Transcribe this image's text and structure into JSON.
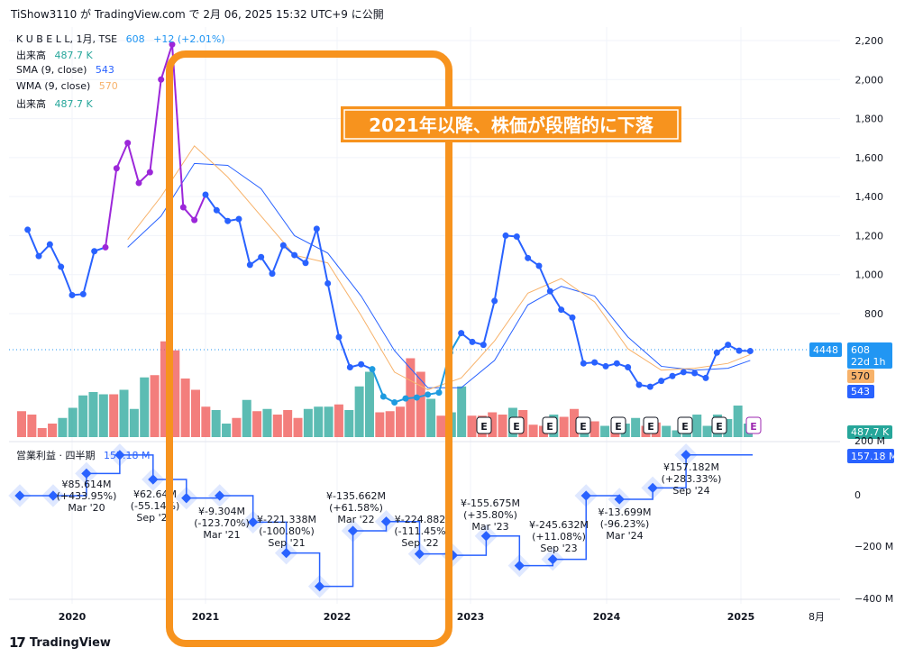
{
  "header": {
    "publisher": "TiShow3110 が TradingView.com で 2月 06, 2025 15:32 UTC+9 に公開"
  },
  "legend": {
    "symbol": "K U B E L L, 1月, TSE",
    "price": "608",
    "change": "+12 (+2.01%)",
    "volume_label": "出来高",
    "volume_value": "487.7 K",
    "sma_label": "SMA (9, close)",
    "sma_value": "543",
    "wma_label": "WMA (9, close)",
    "wma_value": "570",
    "volume2_label": "出来高",
    "volume2_value": "487.7 K"
  },
  "annotation": {
    "text": "2021年以降、株価が段階的に下落"
  },
  "lower_panel_label": {
    "title": "営業利益 · 四半期",
    "value": "157.18 M"
  },
  "price_axis": {
    "ticks": [
      "2,200",
      "2,000",
      "1,800",
      "1,600",
      "1,400",
      "1,200",
      "1,000",
      "800"
    ],
    "badge_symbol": "4448",
    "badge_price": "608",
    "badge_countdown": "22d 1h",
    "badge_wma": "570",
    "badge_sma": "543",
    "badge_volume": "487.7 K"
  },
  "lower_axis": {
    "ticks": [
      "200 M",
      "0",
      "−200 M",
      "−400 M"
    ],
    "badge": "157.18 M"
  },
  "time_axis": [
    "2020",
    "2021",
    "2022",
    "2023",
    "2024",
    "2025",
    "8月"
  ],
  "colors": {
    "accent_orange": "#f59b1a",
    "up_volume": "#26a69a",
    "down_volume": "#ef5350",
    "price_purple": "#9c27d9",
    "price_blue": "#2962ff",
    "price_cyan": "#1e9be0",
    "sma": "#2962ff",
    "wma": "#f7b26a",
    "earnings": "#9c27b0"
  },
  "chart_data": [
    {
      "type": "line",
      "title": "K U B E L L, 1月, TSE",
      "series": [
        {
          "name": "K U B E L L",
          "x": [
            "2019-09",
            "2019-10",
            "2019-11",
            "2019-12",
            "2020-01",
            "2020-02",
            "2020-03",
            "2020-04",
            "2020-05",
            "2020-06",
            "2020-07",
            "2020-08",
            "2020-09",
            "2020-10",
            "2020-11",
            "2020-12",
            "2021-01",
            "2021-02",
            "2021-03",
            "2021-04",
            "2021-05",
            "2021-06",
            "2021-07",
            "2021-08",
            "2021-09",
            "2021-10",
            "2021-11",
            "2021-12",
            "2022-01",
            "2022-02",
            "2022-03",
            "2022-04",
            "2022-05",
            "2022-06",
            "2022-07",
            "2022-08",
            "2022-09",
            "2022-10",
            "2022-11",
            "2022-12",
            "2023-01",
            "2023-02",
            "2023-03",
            "2023-04",
            "2023-05",
            "2023-06",
            "2023-07",
            "2023-08",
            "2023-09",
            "2023-10",
            "2023-11",
            "2023-12",
            "2024-01",
            "2024-02",
            "2024-03",
            "2024-04",
            "2024-05",
            "2024-06",
            "2024-07",
            "2024-08",
            "2024-09",
            "2024-10",
            "2024-11",
            "2024-12",
            "2025-01",
            "2025-02"
          ],
          "values": [
            1230,
            1095,
            1155,
            1040,
            895,
            900,
            1120,
            1140,
            1545,
            1675,
            1470,
            1525,
            2000,
            2180,
            1345,
            1280,
            1410,
            1330,
            1275,
            1285,
            1050,
            1090,
            1005,
            1150,
            1100,
            1060,
            1235,
            955,
            680,
            525,
            540,
            515,
            375,
            345,
            365,
            370,
            385,
            395,
            600,
            700,
            655,
            640,
            865,
            1200,
            1195,
            1085,
            1045,
            915,
            820,
            780,
            545,
            550,
            530,
            545,
            525,
            435,
            425,
            455,
            480,
            500,
            495,
            470,
            600,
            640,
            610,
            608
          ]
        },
        {
          "name": "SMA (9, close)",
          "x": [
            "2020-06",
            "2020-09",
            "2020-12",
            "2021-03",
            "2021-06",
            "2021-09",
            "2021-12",
            "2022-03",
            "2022-06",
            "2022-09",
            "2022-12",
            "2023-03",
            "2023-06",
            "2023-09",
            "2023-12",
            "2024-03",
            "2024-06",
            "2024-09",
            "2024-12",
            "2025-02"
          ],
          "values": [
            1140,
            1300,
            1570,
            1560,
            1440,
            1200,
            1110,
            890,
            610,
            420,
            420,
            560,
            845,
            940,
            890,
            680,
            530,
            510,
            520,
            560
          ]
        },
        {
          "name": "WMA (9, close)",
          "x": [
            "2020-06",
            "2020-09",
            "2020-12",
            "2021-03",
            "2021-06",
            "2021-09",
            "2021-12",
            "2022-03",
            "2022-06",
            "2022-09",
            "2022-12",
            "2023-03",
            "2023-06",
            "2023-09",
            "2023-12",
            "2024-03",
            "2024-06",
            "2024-09",
            "2024-12",
            "2025-02"
          ],
          "values": [
            1180,
            1400,
            1660,
            1500,
            1300,
            1100,
            1060,
            790,
            500,
            410,
            470,
            660,
            905,
            980,
            860,
            620,
            510,
            520,
            545,
            590
          ]
        }
      ],
      "ylim": [
        400,
        2300
      ]
    },
    {
      "type": "bar",
      "title": "出来高",
      "values_relative": [
        0.23,
        0.2,
        0.08,
        0.12,
        0.17,
        0.26,
        0.37,
        0.4,
        0.38,
        0.38,
        0.42,
        0.25,
        0.53,
        0.55,
        0.85,
        0.77,
        0.52,
        0.42,
        0.27,
        0.24,
        0.12,
        0.17,
        0.33,
        0.23,
        0.25,
        0.2,
        0.24,
        0.17,
        0.25,
        0.27,
        0.27,
        0.29,
        0.24,
        0.45,
        0.58,
        0.22,
        0.23,
        0.27,
        0.7,
        0.58,
        0.34,
        0.19,
        0.22,
        0.45,
        0.19,
        0.19,
        0.22,
        0.2,
        0.26,
        0.24,
        0.11,
        0.1,
        0.2,
        0.18,
        0.25,
        0.16,
        0.14,
        0.1,
        0.1,
        0.12,
        0.17,
        0.1,
        0.13,
        0.1,
        0.06,
        0.08,
        0.2,
        0.1,
        0.2,
        0.16,
        0.28,
        0.12
      ],
      "up": [
        0,
        0,
        0,
        0,
        1,
        1,
        1,
        1,
        1,
        0,
        1,
        1,
        1,
        0,
        0,
        0,
        0,
        0,
        0,
        1,
        1,
        0,
        1,
        0,
        1,
        0,
        0,
        0,
        1,
        1,
        1,
        0,
        1,
        1,
        1,
        0,
        0,
        0,
        0,
        0,
        1,
        0,
        1,
        1,
        0,
        0,
        0,
        0,
        1,
        0,
        0,
        0,
        1,
        0,
        0,
        1,
        0,
        1,
        0,
        1,
        1,
        0,
        0,
        1,
        1,
        1,
        1,
        1,
        1,
        1,
        1,
        1
      ]
    },
    {
      "type": "line",
      "title": "営業利益 · 四半期",
      "step": true,
      "x": [
        "Dec '19",
        "Mar '20",
        "Jun '20",
        "Sep '20",
        "Dec '20",
        "Mar '21",
        "Jun '21",
        "Sep '21",
        "Dec '21",
        "Mar '22",
        "Jun '22",
        "Sep '22",
        "Dec '22",
        "Mar '23",
        "Jun '23",
        "Sep '23",
        "Dec '23",
        "Mar '24",
        "Jun '24",
        "Sep '24",
        "Dec '24"
      ],
      "values": [
        0,
        0,
        85.614,
        157,
        62.64,
        -9.304,
        0,
        -102,
        -221.338,
        -350,
        -135.662,
        -100,
        -224.882,
        -230,
        -155.675,
        -270,
        -245.632,
        0,
        -13.699,
        30,
        157.182
      ],
      "labels": [
        {
          "text": "¥85.614M",
          "change": "(+433.95%)",
          "period": "Mar '20"
        },
        {
          "text": "¥62.64M",
          "change": "(-55.14%)",
          "period": "Sep '20"
        },
        {
          "text": "¥-9.304M",
          "change": "(-123.70%)",
          "period": "Mar '21"
        },
        {
          "text": "¥-221.338M",
          "change": "(-100.80%)",
          "period": "Sep '21"
        },
        {
          "text": "¥-135.662M",
          "change": "(+61.58%)",
          "period": "Mar '22"
        },
        {
          "text": "¥-224.882",
          "change": "(-111.45%",
          "period": "Sep '22"
        },
        {
          "text": "¥-155.675M",
          "change": "(+35.80%)",
          "period": "Mar '23"
        },
        {
          "text": "¥-245.632M",
          "change": "(+11.08%)",
          "period": "Sep '23"
        },
        {
          "text": "¥-13.699M",
          "change": "(-96.23%)",
          "period": "Mar '24"
        },
        {
          "text": "¥157.182M",
          "change": "(+283.33%)",
          "period": "Sep '24"
        }
      ],
      "ylim": [
        -420,
        220
      ]
    }
  ],
  "earnings_marker": "E",
  "brand": "TradingView"
}
